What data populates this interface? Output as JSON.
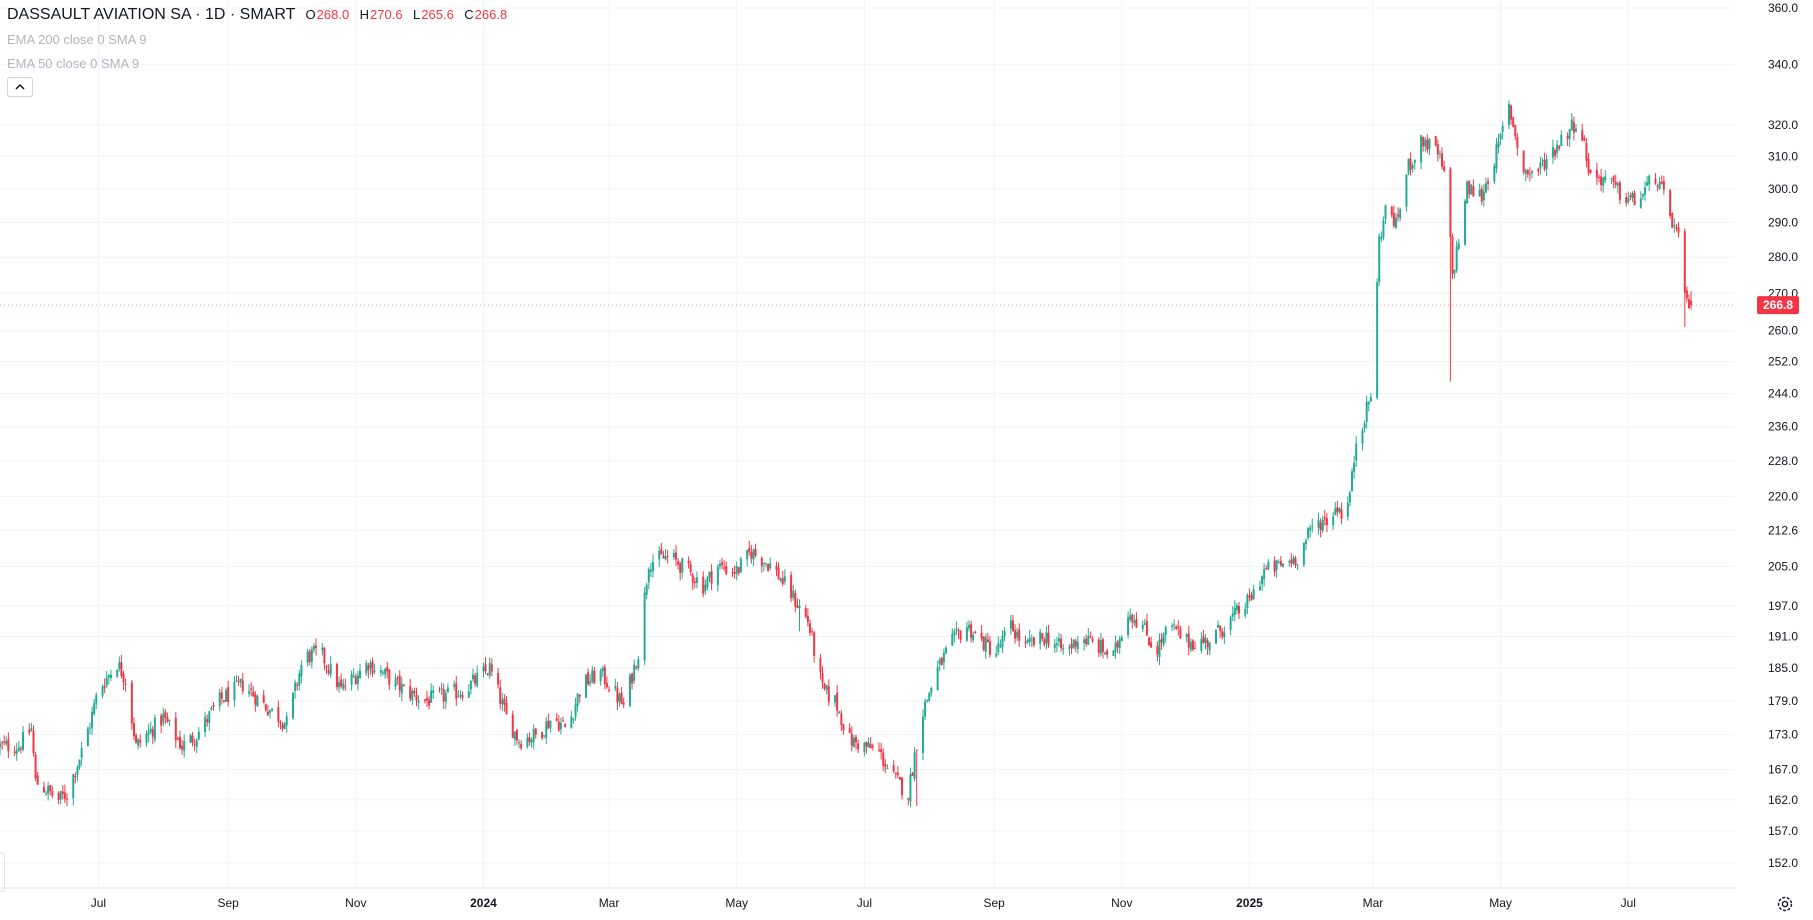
{
  "header": {
    "symbol": "DASSAULT AVIATION SA · 1D · SMART",
    "open_label": "O",
    "open": "268.0",
    "high_label": "H",
    "high": "270.6",
    "low_label": "L",
    "low": "265.6",
    "close_label": "C",
    "close": "266.8"
  },
  "indicators": [
    "EMA 200 close 0 SMA 9",
    "EMA 50 close 0 SMA 9"
  ],
  "icons": {
    "collapse": "chevron-up-icon",
    "settings": "gear-icon"
  },
  "colors": {
    "up": "#22ab94",
    "down": "#f23645",
    "grid": "#f0f3fa",
    "axis_text": "#131722",
    "price_label_bg": "#f23645"
  },
  "chart_data": {
    "type": "candlestick",
    "scale": "log",
    "grid": true,
    "y_ticks": [
      152.0,
      157.0,
      162.0,
      167.0,
      173.0,
      179.0,
      185.0,
      191.0,
      197.0,
      205.0,
      212.6,
      220.0,
      228.0,
      236.0,
      244.0,
      252.0,
      260.0,
      270.0,
      280.0,
      290.0,
      300.0,
      310.0,
      320.0,
      340.0,
      360.0
    ],
    "y_tick_labels": [
      "152.0",
      "157.0",
      "162.0",
      "167.0",
      "173.0",
      "179.0",
      "185.0",
      "191.0",
      "197.0",
      "205.0",
      "212.6",
      "220.0",
      "228.0",
      "236.0",
      "244.0",
      "252.0",
      "260.0",
      "270.0",
      "280.0",
      "290.0",
      "300.0",
      "310.0",
      "320.0",
      "340.0",
      "360.0"
    ],
    "x_range": [
      "2023-05-15",
      "2025-08-10"
    ],
    "x_ticks": [
      {
        "date": "2023-07-01",
        "label": "Jul",
        "bold": false
      },
      {
        "date": "2023-09-01",
        "label": "Sep",
        "bold": false
      },
      {
        "date": "2023-11-01",
        "label": "Nov",
        "bold": false
      },
      {
        "date": "2024-01-01",
        "label": "2024",
        "bold": true
      },
      {
        "date": "2024-03-01",
        "label": "Mar",
        "bold": false
      },
      {
        "date": "2024-05-01",
        "label": "May",
        "bold": false
      },
      {
        "date": "2024-07-01",
        "label": "Jul",
        "bold": false
      },
      {
        "date": "2024-09-01",
        "label": "Sep",
        "bold": false
      },
      {
        "date": "2024-11-01",
        "label": "Nov",
        "bold": false
      },
      {
        "date": "2025-01-01",
        "label": "2025",
        "bold": true
      },
      {
        "date": "2025-03-01",
        "label": "Mar",
        "bold": false
      },
      {
        "date": "2025-05-01",
        "label": "May",
        "bold": false
      },
      {
        "date": "2025-07-01",
        "label": "Jul",
        "bold": false
      }
    ],
    "last_price": 266.8,
    "last_price_label": "266.8",
    "close_path": [
      [
        "2023-05-15",
        171
      ],
      [
        "2023-05-24",
        171
      ],
      [
        "2023-05-30",
        174
      ],
      [
        "2023-06-01",
        165
      ],
      [
        "2023-06-12",
        162
      ],
      [
        "2023-06-16",
        163
      ],
      [
        "2023-06-23",
        170
      ],
      [
        "2023-06-27",
        175
      ],
      [
        "2023-07-01",
        181
      ],
      [
        "2023-07-10",
        186
      ],
      [
        "2023-07-14",
        183
      ],
      [
        "2023-07-19",
        171
      ],
      [
        "2023-08-01",
        176
      ],
      [
        "2023-08-10",
        171
      ],
      [
        "2023-08-17",
        173
      ],
      [
        "2023-08-28",
        179
      ],
      [
        "2023-09-08",
        182
      ],
      [
        "2023-09-19",
        178
      ],
      [
        "2023-09-29",
        175
      ],
      [
        "2023-10-07",
        187
      ],
      [
        "2023-10-15",
        188
      ],
      [
        "2023-10-25",
        181
      ],
      [
        "2023-11-07",
        186
      ],
      [
        "2023-11-14",
        184
      ],
      [
        "2023-11-24",
        181
      ],
      [
        "2023-12-04",
        179
      ],
      [
        "2023-12-14",
        180
      ],
      [
        "2023-12-23",
        181
      ],
      [
        "2024-01-04",
        185
      ],
      [
        "2024-01-12",
        176
      ],
      [
        "2024-01-18",
        172
      ],
      [
        "2024-01-27",
        173
      ],
      [
        "2024-02-03",
        176
      ],
      [
        "2024-02-10",
        174
      ],
      [
        "2024-02-17",
        182
      ],
      [
        "2024-02-26",
        184
      ],
      [
        "2024-03-01",
        182
      ],
      [
        "2024-03-08",
        178
      ],
      [
        "2024-03-15",
        188
      ],
      [
        "2024-03-20",
        206
      ],
      [
        "2024-03-30",
        207
      ],
      [
        "2024-04-08",
        204
      ],
      [
        "2024-04-15",
        201
      ],
      [
        "2024-04-22",
        205
      ],
      [
        "2024-05-01",
        204
      ],
      [
        "2024-05-08",
        208
      ],
      [
        "2024-05-18",
        205
      ],
      [
        "2024-05-26",
        200
      ],
      [
        "2024-06-04",
        194
      ],
      [
        "2024-06-11",
        181
      ],
      [
        "2024-06-17",
        179
      ],
      [
        "2024-06-24",
        172
      ],
      [
        "2024-07-01",
        171
      ],
      [
        "2024-07-08",
        170
      ],
      [
        "2024-07-14",
        166
      ],
      [
        "2024-07-22",
        163
      ],
      [
        "2024-07-28",
        176
      ],
      [
        "2024-08-04",
        184
      ],
      [
        "2024-08-12",
        190
      ],
      [
        "2024-08-19",
        193
      ],
      [
        "2024-08-26",
        190
      ],
      [
        "2024-09-02",
        188
      ],
      [
        "2024-09-09",
        193
      ],
      [
        "2024-09-16",
        189
      ],
      [
        "2024-09-26",
        191
      ],
      [
        "2024-10-05",
        188
      ],
      [
        "2024-10-12",
        191
      ],
      [
        "2024-10-21",
        189
      ],
      [
        "2024-10-28",
        187
      ],
      [
        "2024-11-04",
        196
      ],
      [
        "2024-11-11",
        193
      ],
      [
        "2024-11-17",
        188
      ],
      [
        "2024-11-24",
        193
      ],
      [
        "2024-12-02",
        190
      ],
      [
        "2024-12-12",
        190
      ],
      [
        "2024-12-20",
        193
      ],
      [
        "2025-01-01",
        198
      ],
      [
        "2025-01-08",
        204
      ],
      [
        "2025-01-15",
        205
      ],
      [
        "2025-01-24",
        207
      ],
      [
        "2025-02-01",
        214
      ],
      [
        "2025-02-08",
        215
      ],
      [
        "2025-02-12",
        218
      ],
      [
        "2025-02-16",
        215
      ],
      [
        "2025-02-19",
        224
      ],
      [
        "2025-02-21",
        233
      ],
      [
        "2025-02-26",
        240
      ],
      [
        "2025-03-01",
        246
      ],
      [
        "2025-03-04",
        285
      ],
      [
        "2025-03-08",
        296
      ],
      [
        "2025-03-12",
        289
      ],
      [
        "2025-03-18",
        307
      ],
      [
        "2025-03-25",
        315
      ],
      [
        "2025-04-01",
        311
      ],
      [
        "2025-04-05",
        302
      ],
      [
        "2025-04-08",
        275
      ],
      [
        "2025-04-11",
        285
      ],
      [
        "2025-04-15",
        300
      ],
      [
        "2025-04-22",
        298
      ],
      [
        "2025-04-30",
        313
      ],
      [
        "2025-05-05",
        326
      ],
      [
        "2025-05-12",
        305
      ],
      [
        "2025-05-18",
        305
      ],
      [
        "2025-05-24",
        310
      ],
      [
        "2025-06-02",
        318
      ],
      [
        "2025-06-07",
        322
      ],
      [
        "2025-06-13",
        304
      ],
      [
        "2025-06-20",
        303
      ],
      [
        "2025-06-28",
        298
      ],
      [
        "2025-07-05",
        296
      ],
      [
        "2025-07-14",
        304
      ],
      [
        "2025-07-20",
        294
      ],
      [
        "2025-07-25",
        285
      ],
      [
        "2025-07-28",
        268
      ],
      [
        "2025-07-31",
        266.8
      ]
    ],
    "spikes": [
      {
        "date": "2025-04-07",
        "low": 247
      },
      {
        "date": "2025-03-04",
        "low": 273
      },
      {
        "date": "2024-07-27",
        "low": 161
      },
      {
        "date": "2024-06-01",
        "low": 192
      },
      {
        "date": "2025-07-28",
        "low": 261
      }
    ]
  }
}
